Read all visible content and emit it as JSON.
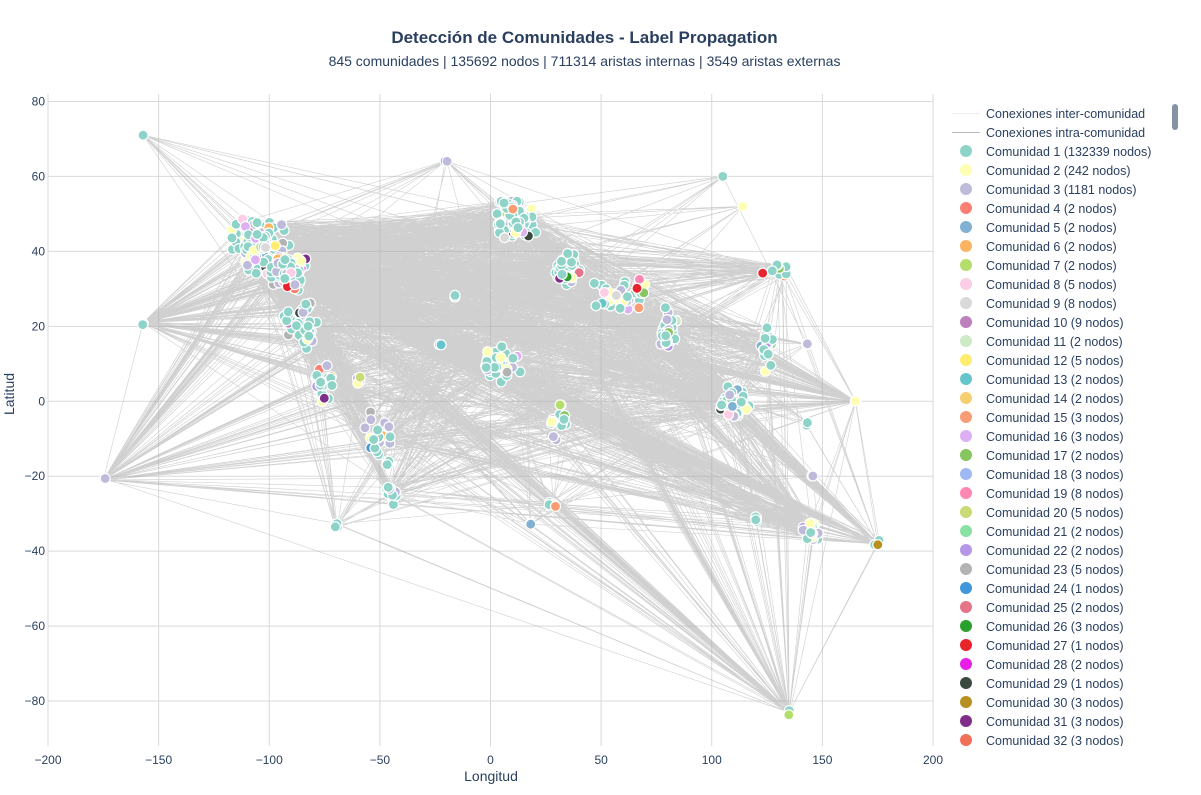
{
  "chart_data": {
    "type": "scatter",
    "title": "Detección de Comunidades - Label Propagation",
    "subtitle": "845 comunidades | 135692 nodos | 711314 aristas internas | 3549 aristas externas",
    "xlabel": "Longitud",
    "ylabel": "Latitud",
    "xlim": [
      -200,
      200
    ],
    "ylim": [
      -92,
      82
    ],
    "x_ticks": [
      -200,
      -150,
      -100,
      -50,
      0,
      50,
      100,
      150,
      200
    ],
    "y_ticks": [
      -80,
      -60,
      -40,
      -20,
      0,
      20,
      40,
      60,
      80
    ],
    "x_tick_labels": [
      "−200",
      "−150",
      "−100",
      "−50",
      "0",
      "50",
      "100",
      "150",
      "200"
    ],
    "y_tick_labels": [
      "−80",
      "−60",
      "−40",
      "−20",
      "0",
      "20",
      "40",
      "60",
      "80"
    ],
    "grid": true,
    "legend_position": "right",
    "edge_color": "#aaaaaa",
    "node_clusters": [
      {
        "lon": -105,
        "lat": 42,
        "spread": [
          15,
          8
        ],
        "count": 170
      },
      {
        "lon": -92,
        "lat": 35,
        "spread": [
          10,
          6
        ],
        "count": 120
      },
      {
        "lon": -85,
        "lat": 20,
        "spread": [
          10,
          8
        ],
        "count": 40
      },
      {
        "lon": -75,
        "lat": 5,
        "spread": [
          6,
          8
        ],
        "count": 20
      },
      {
        "lon": -60,
        "lat": 5,
        "spread": [
          2,
          2
        ],
        "count": 4
      },
      {
        "lon": -50,
        "lat": -10,
        "spread": [
          8,
          8
        ],
        "count": 30
      },
      {
        "lon": -70,
        "lat": -33,
        "spread": [
          2,
          2
        ],
        "count": 5
      },
      {
        "lon": -45,
        "lat": -25,
        "spread": [
          4,
          4
        ],
        "count": 15
      },
      {
        "lon": 10,
        "lat": 48,
        "spread": [
          12,
          7
        ],
        "count": 100
      },
      {
        "lon": 35,
        "lat": 35,
        "spread": [
          8,
          6
        ],
        "count": 40
      },
      {
        "lon": 60,
        "lat": 28,
        "spread": [
          15,
          6
        ],
        "count": 40
      },
      {
        "lon": 80,
        "lat": 18,
        "spread": [
          6,
          8
        ],
        "count": 30
      },
      {
        "lon": 5,
        "lat": 10,
        "spread": [
          10,
          6
        ],
        "count": 40
      },
      {
        "lon": 30,
        "lat": -5,
        "spread": [
          6,
          6
        ],
        "count": 15
      },
      {
        "lon": 28,
        "lat": -27,
        "spread": [
          2,
          2
        ],
        "count": 4
      },
      {
        "lon": 110,
        "lat": 0,
        "spread": [
          8,
          6
        ],
        "count": 50
      },
      {
        "lon": 125,
        "lat": 15,
        "spread": [
          4,
          8
        ],
        "count": 20
      },
      {
        "lon": 130,
        "lat": 35,
        "spread": [
          8,
          3
        ],
        "count": 15
      },
      {
        "lon": 145,
        "lat": -35,
        "spread": [
          5,
          4
        ],
        "count": 25
      },
      {
        "lon": 120,
        "lat": -32,
        "spread": [
          2,
          2
        ],
        "count": 4
      },
      {
        "lon": 175,
        "lat": -38,
        "spread": [
          2,
          2
        ],
        "count": 4
      },
      {
        "lon": 135,
        "lat": -83,
        "spread": [
          1,
          1
        ],
        "count": 3
      },
      {
        "lon": -175,
        "lat": -21,
        "spread": [
          1,
          1
        ],
        "count": 2
      },
      {
        "lon": -157,
        "lat": 21,
        "spread": [
          1,
          1
        ],
        "count": 3
      },
      {
        "lon": -157,
        "lat": 71,
        "spread": [
          0,
          0
        ],
        "count": 1
      },
      {
        "lon": 105,
        "lat": 60,
        "spread": [
          0,
          0
        ],
        "count": 1
      },
      {
        "lon": 114,
        "lat": 52,
        "spread": [
          0,
          0
        ],
        "count": 1
      },
      {
        "lon": 165,
        "lat": 0,
        "spread": [
          1,
          1
        ],
        "count": 2
      },
      {
        "lon": -20,
        "lat": 64,
        "spread": [
          1,
          1
        ],
        "count": 2
      },
      {
        "lon": -16,
        "lat": 28,
        "spread": [
          1,
          1
        ],
        "count": 2
      },
      {
        "lon": -23,
        "lat": 15,
        "spread": [
          1,
          1
        ],
        "count": 2
      },
      {
        "lon": 18,
        "lat": -33,
        "spread": [
          1,
          1
        ],
        "count": 2
      },
      {
        "lon": 145,
        "lat": -20,
        "spread": [
          1,
          1
        ],
        "count": 2
      },
      {
        "lon": 143,
        "lat": -6,
        "spread": [
          1,
          1
        ],
        "count": 2
      },
      {
        "lon": 143,
        "lat": 15,
        "spread": [
          1,
          1
        ],
        "count": 2
      }
    ],
    "series": [
      {
        "name": "Conexiones inter-comunidad",
        "color": "#eeeeee",
        "marker": "line"
      },
      {
        "name": "Conexiones intra-comunidad",
        "color": "#bbbbbb",
        "marker": "line"
      },
      {
        "name": "Comunidad 1 (132339 nodos)",
        "color": "#8dd3c7"
      },
      {
        "name": "Comunidad 2 (242 nodos)",
        "color": "#ffffb3"
      },
      {
        "name": "Comunidad 3 (1181 nodos)",
        "color": "#bebada"
      },
      {
        "name": "Comunidad 4 (2 nodos)",
        "color": "#fb8072"
      },
      {
        "name": "Comunidad 5 (2 nodos)",
        "color": "#80b1d3"
      },
      {
        "name": "Comunidad 6 (2 nodos)",
        "color": "#fdb462"
      },
      {
        "name": "Comunidad 7 (2 nodos)",
        "color": "#b3de69"
      },
      {
        "name": "Comunidad 8 (5 nodos)",
        "color": "#fccde5"
      },
      {
        "name": "Comunidad 9 (8 nodos)",
        "color": "#d9d9d9"
      },
      {
        "name": "Comunidad 10 (9 nodos)",
        "color": "#bc80bd"
      },
      {
        "name": "Comunidad 11 (2 nodos)",
        "color": "#ccebc5"
      },
      {
        "name": "Comunidad 12 (5 nodos)",
        "color": "#ffed6f"
      },
      {
        "name": "Comunidad 13 (2 nodos)",
        "color": "#66c5cc"
      },
      {
        "name": "Comunidad 14 (2 nodos)",
        "color": "#f6cf71"
      },
      {
        "name": "Comunidad 15 (3 nodos)",
        "color": "#f89c74"
      },
      {
        "name": "Comunidad 16 (3 nodos)",
        "color": "#dcb0f2"
      },
      {
        "name": "Comunidad 17 (2 nodos)",
        "color": "#87c55f"
      },
      {
        "name": "Comunidad 18 (3 nodos)",
        "color": "#9eb9f3"
      },
      {
        "name": "Comunidad 19 (8 nodos)",
        "color": "#fe88b1"
      },
      {
        "name": "Comunidad 20 (5 nodos)",
        "color": "#c9db74"
      },
      {
        "name": "Comunidad 21 (2 nodos)",
        "color": "#8be0a4"
      },
      {
        "name": "Comunidad 22 (2 nodos)",
        "color": "#b497e7"
      },
      {
        "name": "Comunidad 23 (5 nodos)",
        "color": "#b3b3b3"
      },
      {
        "name": "Comunidad 24 (1 nodos)",
        "color": "#3f97dc"
      },
      {
        "name": "Comunidad 25 (2 nodos)",
        "color": "#e57489"
      },
      {
        "name": "Comunidad 26 (3 nodos)",
        "color": "#2ca02c"
      },
      {
        "name": "Comunidad 27 (1 nodos)",
        "color": "#e8232c"
      },
      {
        "name": "Comunidad 28 (2 nodos)",
        "color": "#e61fe6"
      },
      {
        "name": "Comunidad 29 (1 nodos)",
        "color": "#3a4a3e"
      },
      {
        "name": "Comunidad 30 (3 nodos)",
        "color": "#b8901f"
      },
      {
        "name": "Comunidad 31 (3 nodos)",
        "color": "#7f2f8a"
      },
      {
        "name": "Comunidad 32 (3 nodos)",
        "color": "#f2705a"
      }
    ]
  }
}
